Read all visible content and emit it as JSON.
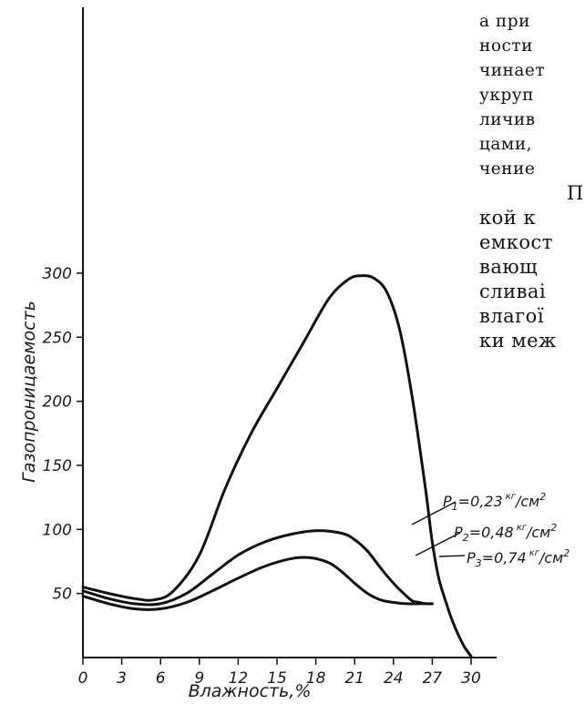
{
  "chart_data": {
    "type": "line",
    "xlabel": "Влажность,%",
    "ylabel": "Газопроницаемость",
    "xlim": [
      0,
      32
    ],
    "ylim": [
      0,
      330
    ],
    "x_ticks": [
      0,
      3,
      6,
      9,
      12,
      15,
      18,
      21,
      24,
      27,
      30
    ],
    "x_tick_labels": [
      "0",
      "3",
      "6",
      "9",
      "12",
      "15",
      "18",
      "21",
      "24",
      "27",
      "30"
    ],
    "y_ticks": [
      50,
      100,
      150,
      200,
      250,
      300
    ],
    "y_tick_labels": [
      "50",
      "100",
      "150",
      "200",
      "250",
      "300"
    ],
    "grid": false,
    "series": [
      {
        "name": "P1=0,23 кг/см2",
        "color": "#111111",
        "x": [
          0,
          2,
          4,
          5.5,
          7,
          9,
          11,
          13,
          15,
          17,
          19,
          20.5,
          21.5,
          22.5,
          23.5,
          24.5,
          25.5,
          26.5,
          27,
          27.5,
          28,
          28.5,
          29,
          29.5,
          30
        ],
        "y": [
          55,
          50,
          46,
          45,
          52,
          80,
          132,
          175,
          210,
          245,
          280,
          295,
          298,
          296,
          285,
          255,
          200,
          130,
          90,
          62,
          45,
          30,
          18,
          8,
          1
        ]
      },
      {
        "name": "P2=0,48 кг/см2",
        "color": "#111111",
        "x": [
          0,
          2,
          4,
          6,
          8,
          10,
          12,
          14,
          16,
          18,
          20,
          21,
          22,
          23,
          24,
          25,
          25.5,
          26,
          26.5,
          27
        ],
        "y": [
          52,
          46,
          42,
          42,
          50,
          65,
          80,
          90,
          96,
          99,
          97,
          92,
          83,
          70,
          58,
          48,
          44,
          43,
          42,
          42
        ]
      },
      {
        "name": "P3=0,74 кг/см2",
        "color": "#111111",
        "x": [
          0,
          2,
          4,
          6,
          8,
          10,
          12,
          14,
          16,
          17.5,
          19,
          20,
          21,
          22,
          23,
          24,
          25,
          26,
          27
        ],
        "y": [
          48,
          42,
          38,
          38,
          43,
          52,
          62,
          71,
          77,
          78,
          74,
          67,
          58,
          50,
          45,
          43,
          42,
          42,
          42
        ]
      }
    ]
  },
  "legend": {
    "p1": {
      "prefix": "P",
      "sub": "1",
      "value": "=0,23",
      "unit_top": "кг",
      "unit_rest": "/см",
      "unit_exp": "2"
    },
    "p2": {
      "prefix": "P",
      "sub": "2",
      "value": "=0,48",
      "unit_top": "кг",
      "unit_rest": "/см",
      "unit_exp": "2"
    },
    "p3": {
      "prefix": "P",
      "sub": "3",
      "value": "=0,74",
      "unit_top": "кг",
      "unit_rest": "/см",
      "unit_exp": "2"
    }
  },
  "side_text": {
    "lines": [
      "а при",
      "ности",
      "чинает",
      "укруп",
      "личив",
      "цами,",
      "чение",
      "П",
      "кой к",
      "емкост",
      "вающ",
      "сливаі",
      "влагої",
      "ки меж"
    ]
  }
}
